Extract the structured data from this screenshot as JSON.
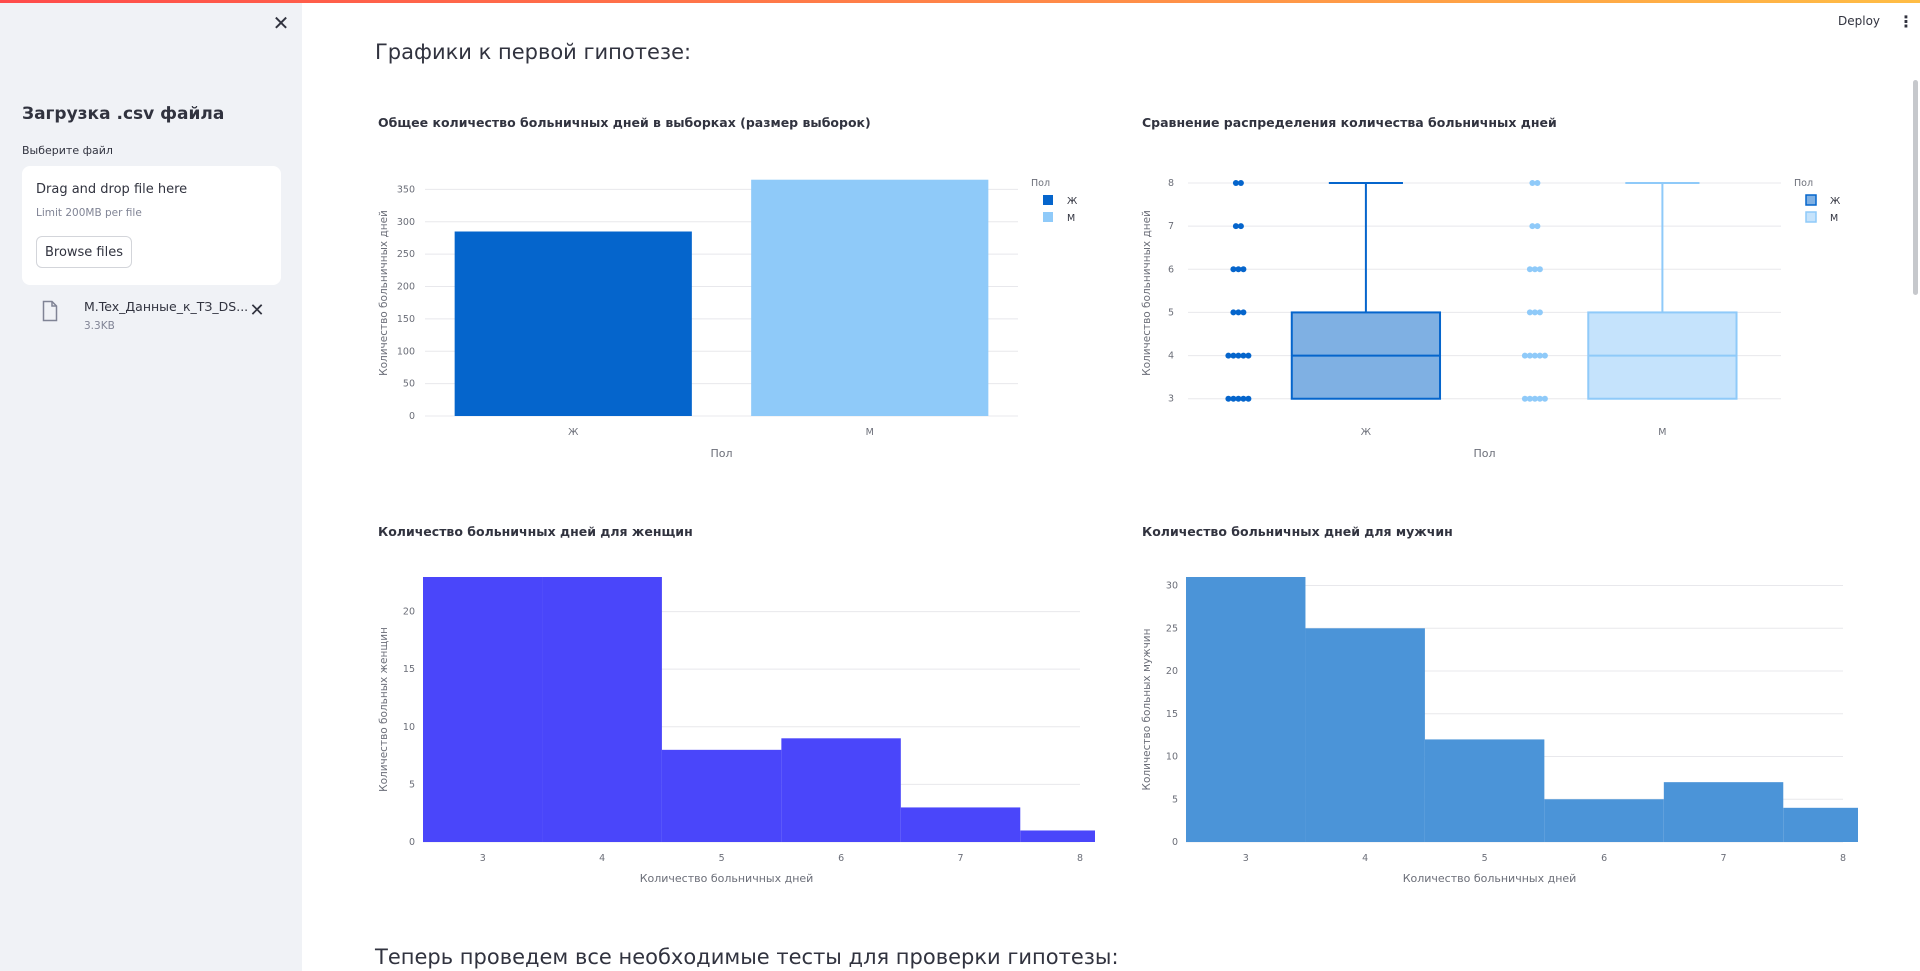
{
  "sidebar": {
    "close_icon": "close-icon",
    "title": "Загрузка .csv файла",
    "upload_label": "Выберите файл",
    "dropzone": {
      "main_text": "Drag and drop file here",
      "limit_text": "Limit 200MB per file",
      "browse_label": "Browse files"
    },
    "file": {
      "icon": "file-icon",
      "name": "M.Tex_Данные_к_ТЗ_DS...",
      "size": "3.3KB",
      "remove_icon": "close-icon"
    }
  },
  "header": {
    "deploy_label": "Deploy",
    "menu_icon": "kebab-menu-icon"
  },
  "main": {
    "heading": "Графики к первой гипотезе:",
    "next_heading": "Теперь проведем все необходимые тесты для проверки гипотезы:"
  },
  "colors": {
    "female": "#0565cc",
    "male": "#8fcaf9",
    "hist_female": "#4a46fa",
    "hist_male": "#4b94d8"
  },
  "chart_data": [
    {
      "type": "bar",
      "title": "Общее количество больничных дней в выборках (размер выборок)",
      "xlabel": "Пол",
      "ylabel": "Количество больничных дней",
      "categories": [
        "Ж",
        "М"
      ],
      "values": [
        285,
        365
      ],
      "ylim": [
        0,
        380
      ],
      "yticks": [
        0,
        50,
        100,
        150,
        200,
        250,
        300,
        350
      ],
      "legend": {
        "title": "Пол",
        "items": [
          "Ж",
          "М"
        ],
        "placement": "top-right"
      },
      "grid": true
    },
    {
      "type": "box",
      "title": "Сравнение распределения количества больничных дней",
      "xlabel": "Пол",
      "ylabel": "Количество больничных дней",
      "categories": [
        "Ж",
        "М"
      ],
      "boxes": [
        {
          "name": "Ж",
          "q1": 3,
          "median": 4,
          "q3": 5,
          "lower_fence": 3,
          "upper_fence": 8,
          "points": [
            3,
            4,
            5,
            6,
            7,
            8
          ]
        },
        {
          "name": "М",
          "q1": 3,
          "median": 4,
          "q3": 5,
          "lower_fence": 3,
          "upper_fence": 8,
          "points": [
            3,
            4,
            5,
            6,
            7,
            8
          ]
        }
      ],
      "ylim": [
        2.6,
        8.3
      ],
      "yticks": [
        3,
        4,
        5,
        6,
        7,
        8
      ],
      "legend": {
        "title": "Пол",
        "items": [
          "Ж",
          "М"
        ],
        "placement": "top-right"
      },
      "grid": true
    },
    {
      "type": "bar",
      "title": "Количество больничных дней для женщин",
      "xlabel": "Количество больничных дней",
      "ylabel": "Количество больных женщин",
      "categories": [
        "3",
        "4",
        "5",
        "6",
        "7",
        "8"
      ],
      "values": [
        23,
        23,
        8,
        9,
        3,
        1
      ],
      "ylim": [
        0,
        23
      ],
      "yticks": [
        0,
        5,
        10,
        15,
        20
      ],
      "grid": true
    },
    {
      "type": "bar",
      "title": "Количество больничных дней для мужчин",
      "xlabel": "Количество больничных дней",
      "ylabel": "Количество больных мужчин",
      "categories": [
        "3",
        "4",
        "5",
        "6",
        "7",
        "8"
      ],
      "values": [
        31,
        25,
        12,
        5,
        7,
        4
      ],
      "ylim": [
        0,
        31
      ],
      "yticks": [
        0,
        5,
        10,
        15,
        20,
        25,
        30
      ],
      "grid": true
    }
  ]
}
